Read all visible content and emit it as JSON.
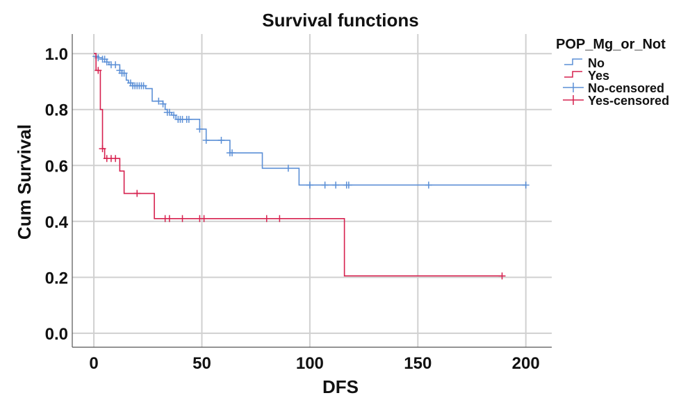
{
  "chart_data": {
    "type": "line",
    "title": "Survival functions",
    "xlabel": "DFS",
    "ylabel": "Cum Survival",
    "xlim": [
      -10,
      212
    ],
    "ylim": [
      -0.05,
      1.07
    ],
    "xticks": [
      0,
      50,
      100,
      150,
      200
    ],
    "yticks": [
      0.0,
      0.2,
      0.4,
      0.6,
      0.8,
      1.0
    ],
    "x_tick_labels": [
      "0",
      "50",
      "100",
      "150",
      "200"
    ],
    "y_tick_labels": [
      "0.0",
      "0.2",
      "0.4",
      "0.6",
      "0.8",
      "1.0"
    ],
    "grid": true,
    "legend": {
      "title": "POP_Mg_or_Not",
      "position": "right",
      "entries": [
        "No",
        "Yes",
        "No-censored",
        "Yes-censored"
      ]
    },
    "colors": {
      "No": "#5b8fd6",
      "Yes": "#d6204e"
    },
    "series": [
      {
        "name": "No",
        "step_points": [
          [
            0,
            1.0
          ],
          [
            1,
            0.99
          ],
          [
            2,
            0.985
          ],
          [
            4,
            0.98
          ],
          [
            6,
            0.97
          ],
          [
            7,
            0.96
          ],
          [
            12,
            0.94
          ],
          [
            13,
            0.93
          ],
          [
            15,
            0.905
          ],
          [
            16,
            0.895
          ],
          [
            18,
            0.885
          ],
          [
            24,
            0.875
          ],
          [
            27,
            0.83
          ],
          [
            32,
            0.82
          ],
          [
            33,
            0.8
          ],
          [
            34,
            0.79
          ],
          [
            36,
            0.78
          ],
          [
            38,
            0.765
          ],
          [
            49,
            0.73
          ],
          [
            52,
            0.69
          ],
          [
            63,
            0.645
          ],
          [
            78,
            0.59
          ],
          [
            95,
            0.53
          ],
          [
            200,
            0.53
          ]
        ],
        "censored": [
          1,
          2,
          4,
          5,
          6,
          8,
          10,
          12,
          13,
          14,
          17,
          18,
          19,
          20,
          21,
          22,
          23,
          30,
          32,
          34,
          35,
          37,
          39,
          40,
          41,
          43,
          44,
          49,
          52,
          59,
          63,
          64,
          90,
          100,
          107,
          112,
          117,
          118,
          155,
          200
        ]
      },
      {
        "name": "Yes",
        "step_points": [
          [
            0,
            1.0
          ],
          [
            1,
            0.94
          ],
          [
            3,
            0.8
          ],
          [
            4,
            0.66
          ],
          [
            5,
            0.625
          ],
          [
            12,
            0.58
          ],
          [
            14,
            0.5
          ],
          [
            28,
            0.41
          ],
          [
            116,
            0.205
          ],
          [
            189,
            0.205
          ]
        ],
        "censored": [
          2,
          4,
          6,
          8,
          10,
          20,
          33,
          35,
          41,
          49,
          51,
          80,
          86,
          189
        ]
      }
    ]
  }
}
